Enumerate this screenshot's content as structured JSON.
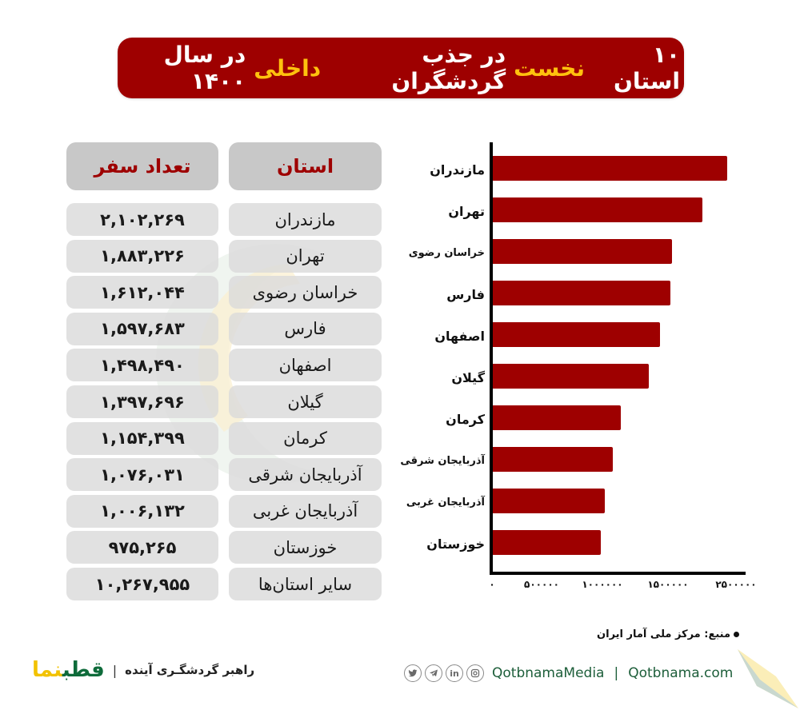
{
  "title": {
    "parts": [
      {
        "text": "۱۰ استان",
        "highlight": false
      },
      {
        "text": "نخست",
        "highlight": true
      },
      {
        "text": "در جذب گردشگران",
        "highlight": false
      },
      {
        "text": "داخلی",
        "highlight": true
      },
      {
        "text": "در سال ۱۴۰۰",
        "highlight": false
      }
    ],
    "full": "۱۰ استان نخست در جذب گردشگران داخلی در سال ۱۴۰۰"
  },
  "colors": {
    "brand_red": "#9e0000",
    "highlight_yellow": "#ffc20e",
    "cell_gray": "#dadada",
    "header_gray": "#c8c8c8",
    "brand_green": "#0e6b3a"
  },
  "table": {
    "headers": {
      "province": "استان",
      "count": "تعداد سفر"
    },
    "rows": [
      {
        "province": "مازندران",
        "count": "۲,۱۰۲,۲۶۹"
      },
      {
        "province": "تهران",
        "count": "۱,۸۸۳,۲۲۶"
      },
      {
        "province": "خراسان رضوی",
        "count": "۱,۶۱۲,۰۴۴"
      },
      {
        "province": "فارس",
        "count": "۱,۵۹۷,۶۸۳"
      },
      {
        "province": "اصفهان",
        "count": "۱,۴۹۸,۴۹۰"
      },
      {
        "province": "گیلان",
        "count": "۱,۳۹۷,۶۹۶"
      },
      {
        "province": "کرمان",
        "count": "۱,۱۵۴,۳۹۹"
      },
      {
        "province": "آذربایجان شرقی",
        "count": "۱,۰۷۶,۰۳۱"
      },
      {
        "province": "آذربایجان غربی",
        "count": "۱,۰۰۶,۱۳۲"
      },
      {
        "province": "خوزستان",
        "count": "۹۷۵,۲۶۵"
      },
      {
        "province": "سایر استان‌ها",
        "count": "۱۰,۲۶۷,۹۵۵"
      }
    ]
  },
  "chart_data": {
    "type": "bar",
    "orientation": "horizontal",
    "title": "۱۰ استان نخست در جذب گردشگران داخلی در سال ۱۴۰۰",
    "xlabel": "",
    "ylabel": "",
    "categories": [
      "مازندران",
      "تهران",
      "خراسان رضوی",
      "فارس",
      "اصفهان",
      "گیلان",
      "کرمان",
      "آذربایجان شرقی",
      "آذربایجان غربی",
      "خوزستان"
    ],
    "values": [
      2102269,
      1883226,
      1612044,
      1597683,
      1498490,
      1397696,
      1154399,
      1076031,
      1006132,
      975265
    ],
    "x_tick_labels": [
      "۰",
      "۵۰۰۰۰۰",
      "۱۰۰۰۰۰۰",
      "۱۵۰۰۰۰۰",
      "۲۵۰۰۰۰۰"
    ],
    "xlim": [
      0,
      2250000
    ],
    "grid": false,
    "legend": null,
    "bar_color": "#9e0000"
  },
  "source": "منبع: مرکز ملی آمار ایران",
  "footer": {
    "logo": {
      "part1": "قطب",
      "part2": "نما"
    },
    "separator": "|",
    "tagline": "راهبر گردشگـری آینده",
    "social_icons": [
      "twitter-icon",
      "telegram-icon",
      "linkedin-icon",
      "instagram-icon"
    ],
    "handle": "QotbnamaMedia",
    "pipe": "|",
    "website": "Qotbnama.com"
  }
}
